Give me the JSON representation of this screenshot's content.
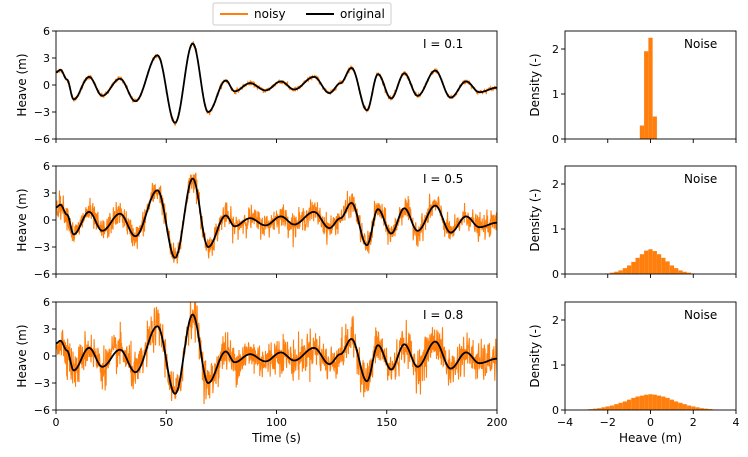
{
  "colors": {
    "noisy": "#ff7f0e",
    "original": "#000000",
    "axes": "#000000"
  },
  "legend": {
    "placement": "top-center",
    "entries": [
      "noisy",
      "original"
    ]
  },
  "chart_data": [
    {
      "type": "line",
      "panel": "top-left",
      "annotation": "I = 0.1",
      "xlabel": "",
      "ylabel": "Heave (m)",
      "xlim": [
        0,
        200
      ],
      "ylim": [
        -6,
        6
      ],
      "xticks": [
        "0",
        "50",
        "100",
        "150",
        "200"
      ],
      "yticks": [
        "−6",
        "−3",
        "0",
        "3",
        "6"
      ],
      "noise_intensity": 0.1,
      "series": [
        {
          "name": "noisy",
          "color": "#ff7f0e"
        },
        {
          "name": "original",
          "color": "#000000"
        }
      ],
      "original_extrema": [
        [
          0,
          1.4
        ],
        [
          2,
          1.7
        ],
        [
          5,
          0.6
        ],
        [
          8,
          -1.6
        ],
        [
          15,
          0.9
        ],
        [
          21,
          -1.2
        ],
        [
          29,
          0.7
        ],
        [
          36,
          -1.8
        ],
        [
          46,
          3.3
        ],
        [
          54,
          -4.2
        ],
        [
          62,
          4.6
        ],
        [
          69,
          -3.0
        ],
        [
          77,
          0.5
        ],
        [
          81,
          -0.7
        ],
        [
          88,
          0.2
        ],
        [
          95,
          -0.6
        ],
        [
          102,
          0.4
        ],
        [
          108,
          -0.5
        ],
        [
          117,
          0.9
        ],
        [
          124,
          -0.9
        ],
        [
          129,
          0.2
        ],
        [
          134,
          1.9
        ],
        [
          141,
          -2.8
        ],
        [
          146,
          1.2
        ],
        [
          152,
          -1.5
        ],
        [
          158,
          1.3
        ],
        [
          164,
          -1.2
        ],
        [
          172,
          1.6
        ],
        [
          179,
          -1.4
        ],
        [
          186,
          0.4
        ],
        [
          192,
          -0.8
        ],
        [
          200,
          -0.3
        ]
      ]
    },
    {
      "type": "line",
      "panel": "middle-left",
      "annotation": "I = 0.5",
      "xlabel": "",
      "ylabel": "Heave (m)",
      "xlim": [
        0,
        200
      ],
      "ylim": [
        -6,
        6
      ],
      "xticks": [
        "0",
        "50",
        "100",
        "150",
        "200"
      ],
      "yticks": [
        "−6",
        "−3",
        "0",
        "3",
        "6"
      ],
      "noise_intensity": 0.5,
      "series": [
        {
          "name": "noisy",
          "color": "#ff7f0e"
        },
        {
          "name": "original",
          "color": "#000000"
        }
      ]
    },
    {
      "type": "line",
      "panel": "bottom-left",
      "annotation": "I = 0.8",
      "xlabel": "Time (s)",
      "ylabel": "Heave (m)",
      "xlim": [
        0,
        200
      ],
      "ylim": [
        -6,
        6
      ],
      "xticks": [
        "0",
        "50",
        "100",
        "150",
        "200"
      ],
      "yticks": [
        "−6",
        "−3",
        "0",
        "3",
        "6"
      ],
      "noise_intensity": 0.8,
      "series": [
        {
          "name": "noisy",
          "color": "#ff7f0e"
        },
        {
          "name": "original",
          "color": "#000000"
        }
      ]
    },
    {
      "type": "bar",
      "panel": "top-right",
      "annotation": "Noise",
      "xlabel": "",
      "ylabel": "Density (-)",
      "xlim": [
        -4,
        4
      ],
      "ylim": [
        0,
        2.4
      ],
      "xticks": [
        "−4",
        "−2",
        "0",
        "2",
        "4"
      ],
      "yticks": [
        "0",
        "1",
        "2"
      ],
      "color": "#ff7f0e",
      "bin_width": 0.2,
      "bins": [
        [
          -0.4,
          0.3
        ],
        [
          -0.2,
          1.95
        ],
        [
          0.0,
          2.25
        ],
        [
          0.2,
          0.5
        ]
      ]
    },
    {
      "type": "bar",
      "panel": "middle-right",
      "annotation": "Noise",
      "xlabel": "",
      "ylabel": "Density (-)",
      "xlim": [
        -4,
        4
      ],
      "ylim": [
        0,
        2.4
      ],
      "xticks": [
        "−4",
        "−2",
        "0",
        "2",
        "4"
      ],
      "yticks": [
        "0",
        "1",
        "2"
      ],
      "color": "#ff7f0e",
      "bin_width": 0.2,
      "bins": [
        [
          -2.0,
          0.01
        ],
        [
          -1.8,
          0.03
        ],
        [
          -1.6,
          0.05
        ],
        [
          -1.4,
          0.08
        ],
        [
          -1.2,
          0.13
        ],
        [
          -1.0,
          0.19
        ],
        [
          -0.8,
          0.27
        ],
        [
          -0.6,
          0.36
        ],
        [
          -0.4,
          0.44
        ],
        [
          -0.2,
          0.52
        ],
        [
          0.0,
          0.55
        ],
        [
          0.2,
          0.51
        ],
        [
          0.4,
          0.44
        ],
        [
          0.6,
          0.36
        ],
        [
          0.8,
          0.28
        ],
        [
          1.0,
          0.19
        ],
        [
          1.2,
          0.13
        ],
        [
          1.4,
          0.08
        ],
        [
          1.6,
          0.05
        ],
        [
          1.8,
          0.03
        ],
        [
          2.0,
          0.01
        ]
      ]
    },
    {
      "type": "bar",
      "panel": "bottom-right",
      "annotation": "Noise",
      "xlabel": "Heave (m)",
      "ylabel": "Density (-)",
      "xlim": [
        -4,
        4
      ],
      "ylim": [
        0,
        2.4
      ],
      "xticks": [
        "−4",
        "−2",
        "0",
        "2",
        "4"
      ],
      "yticks": [
        "0",
        "1",
        "2"
      ],
      "color": "#ff7f0e",
      "bin_width": 0.2,
      "bins": [
        [
          -3.2,
          0.005
        ],
        [
          -3.0,
          0.01
        ],
        [
          -2.8,
          0.02
        ],
        [
          -2.6,
          0.03
        ],
        [
          -2.4,
          0.04
        ],
        [
          -2.2,
          0.06
        ],
        [
          -2.0,
          0.08
        ],
        [
          -1.8,
          0.1
        ],
        [
          -1.6,
          0.13
        ],
        [
          -1.4,
          0.16
        ],
        [
          -1.2,
          0.19
        ],
        [
          -1.0,
          0.23
        ],
        [
          -0.8,
          0.27
        ],
        [
          -0.6,
          0.3
        ],
        [
          -0.4,
          0.32
        ],
        [
          -0.2,
          0.34
        ],
        [
          0.0,
          0.35
        ],
        [
          0.2,
          0.34
        ],
        [
          0.4,
          0.32
        ],
        [
          0.6,
          0.3
        ],
        [
          0.8,
          0.27
        ],
        [
          1.0,
          0.23
        ],
        [
          1.2,
          0.19
        ],
        [
          1.4,
          0.16
        ],
        [
          1.6,
          0.13
        ],
        [
          1.8,
          0.1
        ],
        [
          2.0,
          0.08
        ],
        [
          2.2,
          0.06
        ],
        [
          2.4,
          0.04
        ],
        [
          2.6,
          0.03
        ],
        [
          2.8,
          0.02
        ],
        [
          3.0,
          0.01
        ],
        [
          3.2,
          0.005
        ]
      ]
    }
  ]
}
